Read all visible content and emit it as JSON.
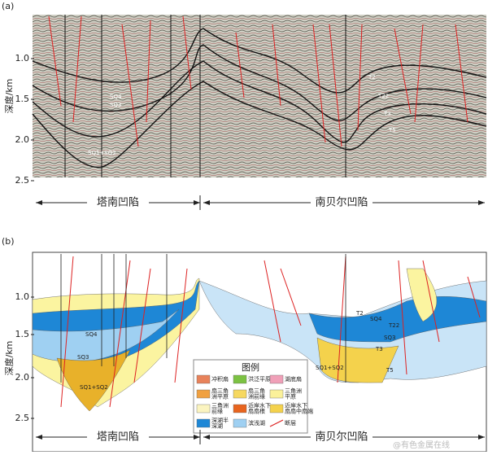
{
  "panel_a": {
    "tag": "(a)",
    "y_label": "深度/km",
    "ticks": [
      "1.0",
      "1.5",
      "2.0",
      "2.5"
    ],
    "annotations": [
      "SQ4",
      "SQ3",
      "SQ1+SQ2",
      "T2",
      "T22",
      "T3",
      "T5"
    ],
    "basins": [
      "塔南凹陷",
      "南贝尔凹陷"
    ]
  },
  "panel_b": {
    "tag": "(b)",
    "y_label": "深度/km",
    "ticks": [
      "1.0",
      "1.5",
      "2.0",
      "2.5"
    ],
    "annotations": [
      "SQ4",
      "SQ3",
      "SQ1+SQ2",
      "SQ1+SQ2",
      "T2",
      "SQ4",
      "T22",
      "SQ3",
      "T3",
      "T5"
    ],
    "basins": [
      "塔南凹陷",
      "南贝尔凹陷"
    ],
    "legend": {
      "title": "图例",
      "items": [
        {
          "lines": [
            "冲积扇"
          ]
        },
        {
          "lines": [
            "洪泛平原"
          ]
        },
        {
          "lines": [
            "湖底扇"
          ]
        },
        {
          "lines": [
            "扇三角",
            "洲平原"
          ]
        },
        {
          "lines": [
            "扇三角",
            "洲前缘"
          ]
        },
        {
          "lines": [
            "三角洲",
            "平原"
          ]
        },
        {
          "lines": [
            "三角洲",
            "前缘"
          ]
        },
        {
          "lines": [
            "近岸水下",
            "扇扇根"
          ]
        },
        {
          "lines": [
            "近岸水下",
            "扇扇中扇端"
          ]
        },
        {
          "lines": [
            "深湖半",
            "深湖"
          ]
        },
        {
          "lines": [
            "滨浅湖"
          ]
        },
        {
          "lines": [
            "断层"
          ]
        }
      ]
    }
  },
  "watermark": "@有色金属在线"
}
